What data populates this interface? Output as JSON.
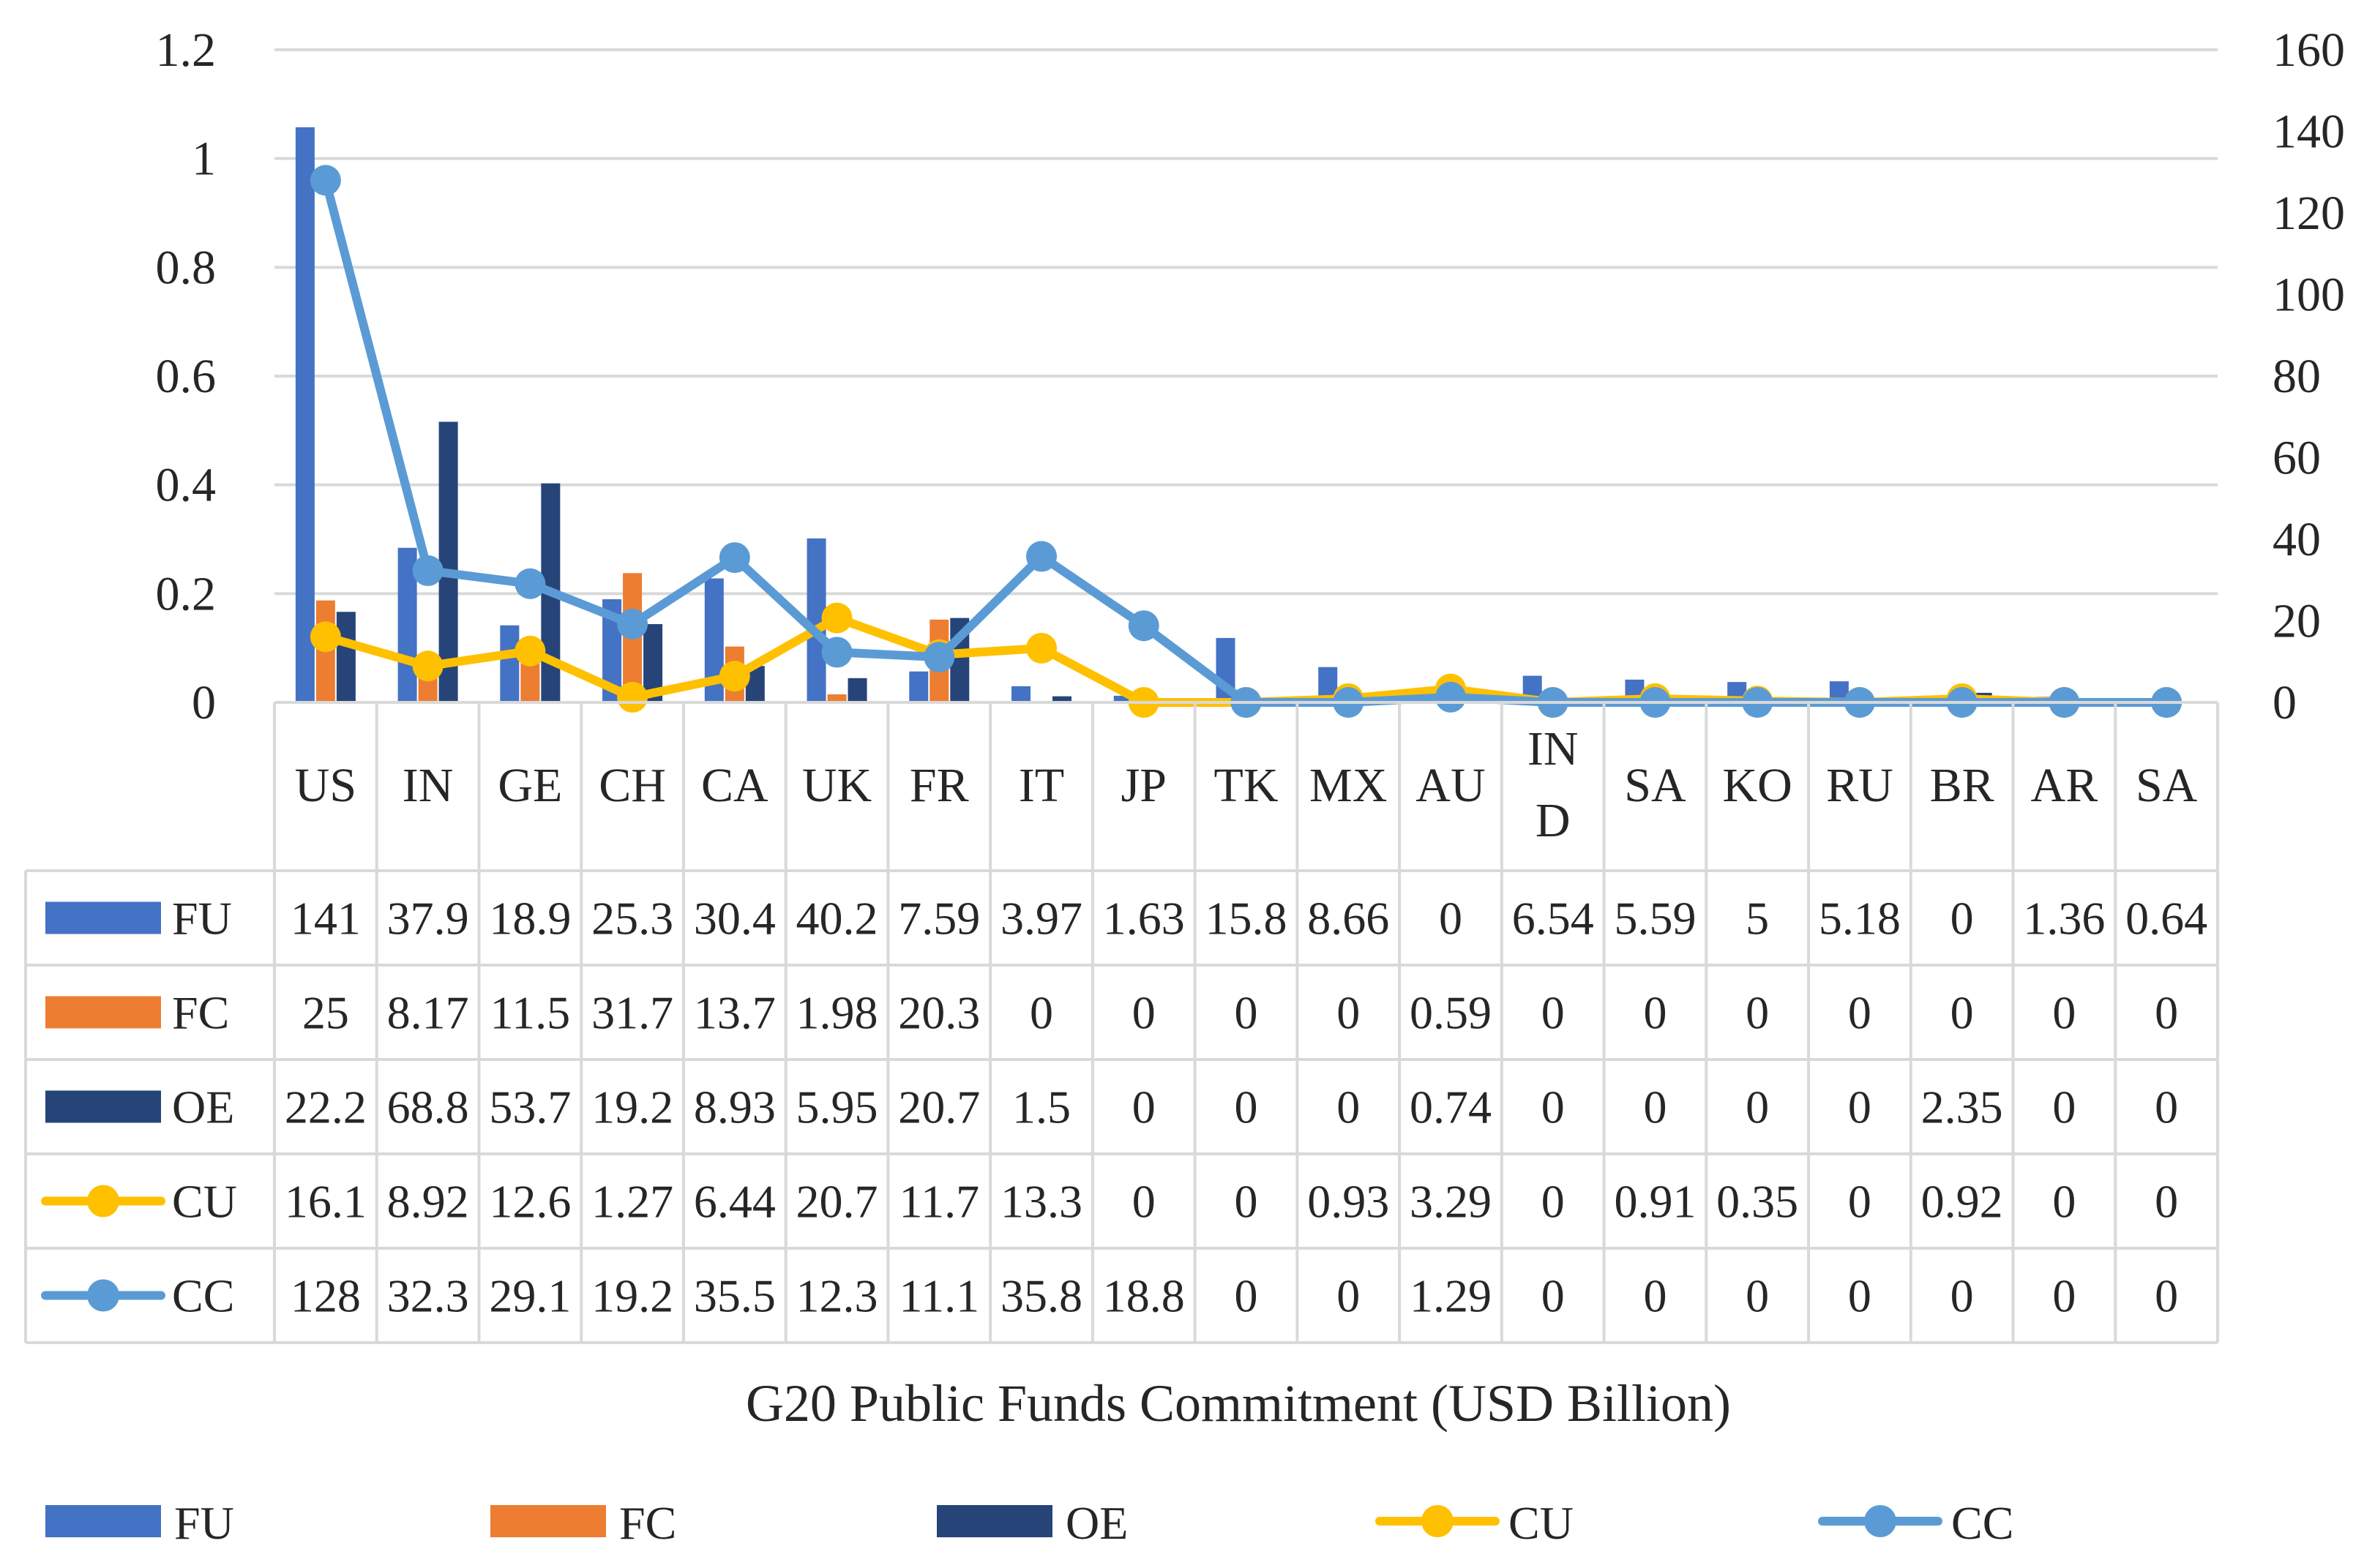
{
  "chart_data": {
    "type": "bar",
    "title": "",
    "xlabel": "G20 Public Funds Commitment (USD Billion)",
    "ylabel": "",
    "ylim": [
      0,
      1.2
    ],
    "y_ticks": [
      "0",
      "0.2",
      "0.4",
      "0.6",
      "0.8",
      "1",
      "1.2"
    ],
    "y2lim": [
      0,
      160
    ],
    "y2_ticks": [
      "0",
      "20",
      "40",
      "60",
      "80",
      "100",
      "120",
      "140",
      "160"
    ],
    "categories": [
      "US",
      "IN",
      "GE",
      "CH",
      "CA",
      "UK",
      "FR",
      "IT",
      "JP",
      "TK",
      "MX",
      "AU",
      "IN D",
      "SA",
      "KO",
      "RU",
      "BR",
      "AR",
      "SA"
    ],
    "category_lines": [
      [
        "US"
      ],
      [
        "IN"
      ],
      [
        "GE"
      ],
      [
        "CH"
      ],
      [
        "CA"
      ],
      [
        "UK"
      ],
      [
        "FR"
      ],
      [
        "IT"
      ],
      [
        "JP"
      ],
      [
        "TK"
      ],
      [
        "MX"
      ],
      [
        "AU"
      ],
      [
        "IN",
        "D"
      ],
      [
        "SA"
      ],
      [
        "KO"
      ],
      [
        "RU"
      ],
      [
        "BR"
      ],
      [
        "AR"
      ],
      [
        "SA"
      ]
    ],
    "series": [
      {
        "name": "FU",
        "kind": "bar",
        "axis": "right",
        "color": "#4472c4",
        "values": [
          141,
          37.9,
          18.9,
          25.3,
          30.4,
          40.2,
          7.59,
          3.97,
          1.63,
          15.8,
          8.66,
          0,
          6.54,
          5.59,
          5,
          5.18,
          0,
          1.36,
          0.64
        ],
        "labels": [
          "141",
          "37.9",
          "18.9",
          "25.3",
          "30.4",
          "40.2",
          "7.59",
          "3.97",
          "1.63",
          "15.8",
          "8.66",
          "0",
          "6.54",
          "5.59",
          "5",
          "5.18",
          "0",
          "1.36",
          "0.64"
        ]
      },
      {
        "name": "FC",
        "kind": "bar",
        "axis": "right",
        "color": "#ed7d31",
        "values": [
          25,
          8.17,
          11.5,
          31.7,
          13.7,
          1.98,
          20.3,
          0,
          0,
          0,
          0,
          0.59,
          0,
          0,
          0,
          0,
          0,
          0,
          0
        ],
        "labels": [
          "25",
          "8.17",
          "11.5",
          "31.7",
          "13.7",
          "1.98",
          "20.3",
          "0",
          "0",
          "0",
          "0",
          "0.59",
          "0",
          "0",
          "0",
          "0",
          "0",
          "0",
          "0"
        ]
      },
      {
        "name": "OE",
        "kind": "bar",
        "axis": "right",
        "color": "#264478",
        "values": [
          22.2,
          68.8,
          53.7,
          19.2,
          8.93,
          5.95,
          20.7,
          1.5,
          0,
          0,
          0,
          0.74,
          0,
          0,
          0,
          0,
          2.35,
          0,
          0
        ],
        "labels": [
          "22.2",
          "68.8",
          "53.7",
          "19.2",
          "8.93",
          "5.95",
          "20.7",
          "1.5",
          "0",
          "0",
          "0",
          "0.74",
          "0",
          "0",
          "0",
          "0",
          "2.35",
          "0",
          "0"
        ]
      },
      {
        "name": "CU",
        "kind": "line",
        "axis": "right",
        "color": "#ffc000",
        "values": [
          16.1,
          8.92,
          12.6,
          1.27,
          6.44,
          20.7,
          11.7,
          13.3,
          0,
          0,
          0.93,
          3.29,
          0,
          0.91,
          0.35,
          0,
          0.92,
          0,
          0
        ],
        "labels": [
          "16.1",
          "8.92",
          "12.6",
          "1.27",
          "6.44",
          "20.7",
          "11.7",
          "13.3",
          "0",
          "0",
          "0.93",
          "3.29",
          "0",
          "0.91",
          "0.35",
          "0",
          "0.92",
          "0",
          "0"
        ]
      },
      {
        "name": "CC",
        "kind": "line",
        "axis": "right",
        "color": "#5b9bd5",
        "values": [
          128,
          32.3,
          29.1,
          19.2,
          35.5,
          12.3,
          11.1,
          35.8,
          18.8,
          0,
          0,
          1.29,
          0,
          0,
          0,
          0,
          0,
          0,
          0
        ],
        "labels": [
          "128",
          "32.3",
          "29.1",
          "19.2",
          "35.5",
          "12.3",
          "11.1",
          "35.8",
          "18.8",
          "0",
          "0",
          "1.29",
          "0",
          "0",
          "0",
          "0",
          "0",
          "0",
          "0"
        ]
      }
    ],
    "legend": "bottom",
    "grid": true,
    "data_table": true
  }
}
